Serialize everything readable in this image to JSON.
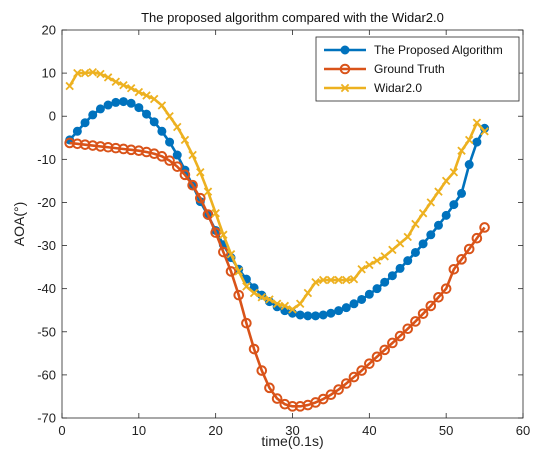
{
  "chart_data": {
    "type": "line",
    "title": "The proposed algorithm compared with the Widar2.0",
    "xlabel": "time(0.1s)",
    "ylabel": "AOA(°)",
    "xlim": [
      0,
      60
    ],
    "ylim": [
      -70,
      20
    ],
    "xticks": [
      0,
      10,
      20,
      30,
      40,
      50,
      60
    ],
    "yticks": [
      20,
      10,
      0,
      -10,
      -20,
      -30,
      -40,
      -50,
      -60,
      -70
    ],
    "grid": false,
    "legend_position": "top-right",
    "series": [
      {
        "name": "The Proposed Algorithm",
        "color": "#0072BD",
        "marker": "circle-filled",
        "x": [
          1,
          2,
          3,
          4,
          5,
          6,
          7,
          8,
          9,
          10,
          11,
          12,
          13,
          14,
          15,
          16,
          17,
          18,
          19,
          20,
          21,
          22,
          23,
          24,
          25,
          26,
          27,
          28,
          29,
          30,
          31,
          32,
          33,
          34,
          35,
          36,
          37,
          38,
          39,
          40,
          41,
          42,
          43,
          44,
          45,
          46,
          47,
          48,
          49,
          50,
          51,
          52,
          53,
          54,
          55
        ],
        "y": [
          -5.5,
          -3.5,
          -1.5,
          0.3,
          1.7,
          2.6,
          3.2,
          3.4,
          3.0,
          2.0,
          0.5,
          -1.3,
          -3.5,
          -6.0,
          -9.0,
          -12.5,
          -16.0,
          -19.8,
          -23.0,
          -26.5,
          -29.8,
          -32.8,
          -35.5,
          -37.8,
          -39.8,
          -41.5,
          -43.0,
          -44.2,
          -45.1,
          -45.7,
          -46.1,
          -46.3,
          -46.3,
          -46.1,
          -45.7,
          -45.1,
          -44.4,
          -43.5,
          -42.5,
          -41.3,
          -40.0,
          -38.5,
          -37.0,
          -35.3,
          -33.5,
          -31.6,
          -29.6,
          -27.5,
          -25.3,
          -23.0,
          -20.5,
          -17.9,
          -11.2,
          -6.0,
          -2.8
        ]
      },
      {
        "name": "Ground Truth",
        "color": "#D95319",
        "marker": "circle-open",
        "x": [
          1,
          2,
          3,
          4,
          5,
          6,
          7,
          8,
          9,
          10,
          11,
          12,
          13,
          14,
          15,
          16,
          17,
          18,
          19,
          20,
          21,
          22,
          23,
          24,
          25,
          26,
          27,
          28,
          29,
          30,
          31,
          32,
          33,
          34,
          35,
          36,
          37,
          38,
          39,
          40,
          41,
          42,
          43,
          44,
          45,
          46,
          47,
          48,
          49,
          50,
          51,
          52,
          53,
          54,
          55
        ],
        "y": [
          -6.2,
          -6.4,
          -6.6,
          -6.8,
          -7.0,
          -7.2,
          -7.4,
          -7.6,
          -7.8,
          -8.0,
          -8.3,
          -8.7,
          -9.3,
          -10.3,
          -11.7,
          -13.6,
          -16.0,
          -19.0,
          -22.8,
          -27.0,
          -31.5,
          -36.0,
          -41.5,
          -48.0,
          -54.0,
          -59.0,
          -63.0,
          -65.5,
          -66.8,
          -67.3,
          -67.3,
          -67.0,
          -66.4,
          -65.6,
          -64.6,
          -63.4,
          -62.0,
          -60.5,
          -59.0,
          -57.4,
          -55.8,
          -54.2,
          -52.6,
          -51.0,
          -49.3,
          -47.6,
          -45.8,
          -44.0,
          -42.0,
          -40.0,
          -35.5,
          -33.2,
          -30.8,
          -28.3,
          -25.8
        ]
      },
      {
        "name": "Widar2.0",
        "color": "#EDB120",
        "marker": "x",
        "x": [
          1,
          2,
          3,
          4,
          5,
          6,
          7,
          8,
          9,
          10,
          11,
          12,
          13,
          14,
          15,
          16,
          17,
          18,
          19,
          20,
          21,
          22,
          23,
          24,
          25,
          26,
          27,
          28,
          29,
          30,
          31,
          32,
          33,
          34,
          35,
          36,
          37,
          38,
          39,
          40,
          41,
          42,
          43,
          44,
          45,
          46,
          47,
          48,
          49,
          50,
          51,
          52,
          53,
          54,
          55
        ],
        "y": [
          7.0,
          10.0,
          10.0,
          10.2,
          9.8,
          9.0,
          8.0,
          7.2,
          6.5,
          5.6,
          4.8,
          4.0,
          2.5,
          0.0,
          -2.5,
          -5.5,
          -9.0,
          -13.0,
          -17.5,
          -22.5,
          -27.5,
          -32.0,
          -36.0,
          -39.5,
          -41.0,
          -42.0,
          -42.5,
          -43.5,
          -44.0,
          -44.8,
          -43.5,
          -41.0,
          -38.5,
          -38.0,
          -38.0,
          -38.0,
          -38.0,
          -37.8,
          -35.5,
          -34.5,
          -33.5,
          -32.5,
          -31.0,
          -29.5,
          -28.0,
          -25.0,
          -22.5,
          -20.0,
          -17.5,
          -15.0,
          -13.0,
          -8.0,
          -5.5,
          -1.5,
          -3.5
        ]
      }
    ]
  }
}
